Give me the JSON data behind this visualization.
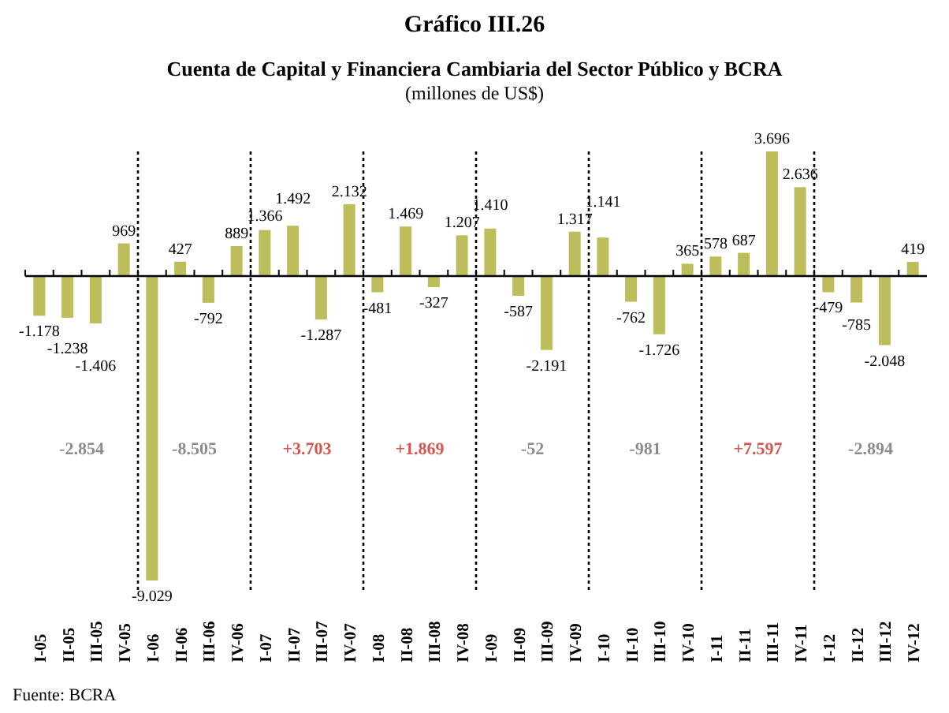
{
  "chart_data": {
    "type": "bar",
    "title": "Gráfico III.26",
    "subtitle": "Cuenta de Capital y Financiera Cambiaria del Sector Público y BCRA",
    "ylabel": "(millones de US$)",
    "categories": [
      "I-05",
      "II-05",
      "III-05",
      "IV-05",
      "I-06",
      "II-06",
      "III-06",
      "IV-06",
      "I-07",
      "II-07",
      "III-07",
      "IV-07",
      "I-08",
      "II-08",
      "III-08",
      "IV-08",
      "I-09",
      "II-09",
      "III-09",
      "IV-09",
      "I-10",
      "II-10",
      "III-10",
      "IV-10",
      "I-11",
      "II-11",
      "III-11",
      "IV-11",
      "I-12",
      "II-12",
      "III-12",
      "IV-12"
    ],
    "values": [
      -1178,
      -1238,
      -1406,
      969,
      -9029,
      427,
      -792,
      889,
      1366,
      1492,
      -1287,
      2132,
      -481,
      1469,
      -327,
      1207,
      1410,
      -587,
      -2191,
      1317,
      1141,
      -762,
      -1726,
      365,
      578,
      687,
      3696,
      2636,
      -479,
      -785,
      -2048,
      419
    ],
    "value_labels": [
      "-1.178",
      "-1.238",
      "-1.406",
      "969",
      "-9.029",
      "427",
      "-792",
      "889",
      "1.366",
      "1.492",
      "-1.287",
      "2.132",
      "-481",
      "1.469",
      "-327",
      "1.207",
      "1.410",
      "-587",
      "-2.191",
      "1.317",
      "1.141",
      "-762",
      "-1.726",
      "365",
      "578",
      "687",
      "3.696",
      "2.636",
      "-479",
      "-785",
      "-2.048",
      "419"
    ],
    "color": "#bdbd5c",
    "annotations": [
      "-2.854",
      "-8.505",
      "+3.703",
      "+1.869",
      "-52",
      "-981",
      "+7.597",
      "-2.894",
      "Fuente: BCRA"
    ]
  }
}
